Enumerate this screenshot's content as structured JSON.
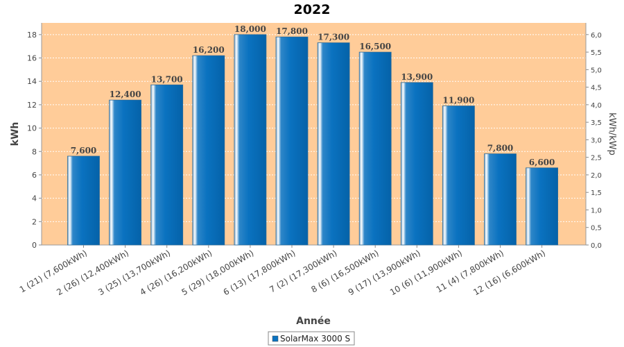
{
  "chart_data": {
    "type": "bar",
    "title": "2022",
    "xlabel": "Année",
    "ylabel": "kWh",
    "y2label": "kWh/kWp",
    "ylim": [
      0,
      19
    ],
    "y2lim": [
      0,
      6.333
    ],
    "yticks": [
      "0",
      "2",
      "4",
      "6",
      "8",
      "10",
      "12",
      "14",
      "16",
      "18"
    ],
    "y2ticks": [
      "0,0",
      "0,5",
      "1,0",
      "1,5",
      "2,0",
      "2,5",
      "3,0",
      "3,5",
      "4,0",
      "4,5",
      "5,0",
      "5,5",
      "6,0"
    ],
    "grid": true,
    "legend_position": "bottom",
    "categories": [
      "1 (21)  (7,600kWh)",
      "2 (26)  (12,400kWh)",
      "3 (25)  (13,700kWh)",
      "4 (26)  (16,200kWh)",
      "5 (29)  (18,000kWh)",
      "6 (13)  (17,800kWh)",
      "7 (2)  (17,300kWh)",
      "8 (6)  (16,500kWh)",
      "9 (17)  (13,900kWh)",
      "10 (6)  (11,900kWh)",
      "11 (4)  (7,800kWh)",
      "12 (16)  (6,600kWh)"
    ],
    "series": [
      {
        "name": "SolarMax 3000 S",
        "color": "#0a72c0",
        "values": [
          7.6,
          12.4,
          13.7,
          16.2,
          18.0,
          17.8,
          17.3,
          16.5,
          13.9,
          11.9,
          7.8,
          6.6
        ],
        "labels": [
          "7,600",
          "12,400",
          "13,700",
          "16,200",
          "18,000",
          "17,800",
          "17,300",
          "16,500",
          "13,900",
          "11,900",
          "7,800",
          "6,600"
        ]
      }
    ],
    "plot_background": "#ffcc99",
    "grid_color": "#ffffff"
  }
}
